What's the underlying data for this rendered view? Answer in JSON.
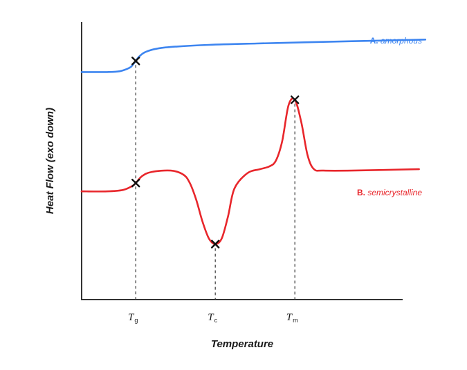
{
  "chart_data": {
    "type": "line",
    "xlabel": "Temperature",
    "ylabel": "Heat Flow (exo down)",
    "x_ticks": [
      {
        "name": "Tg",
        "main": "T",
        "sub": "g",
        "x": 0.17
      },
      {
        "name": "Tc",
        "main": "T",
        "sub": "c",
        "x": 0.42
      },
      {
        "name": "Tm",
        "main": "T",
        "sub": "m",
        "x": 0.67
      }
    ],
    "series": [
      {
        "name": "amorphous",
        "prefix": "A.",
        "color": "#3d85f0",
        "x": [
          0.0,
          0.08,
          0.12,
          0.15,
          0.16,
          0.17,
          0.18,
          0.2,
          0.24,
          0.3,
          0.4,
          0.55,
          0.7,
          0.85,
          1.08
        ],
        "y": [
          0.82,
          0.82,
          0.823,
          0.835,
          0.845,
          0.86,
          0.875,
          0.892,
          0.905,
          0.912,
          0.918,
          0.923,
          0.927,
          0.931,
          0.937
        ],
        "markers": [
          {
            "x": 0.17,
            "y": 0.86
          }
        ]
      },
      {
        "name": "semicrystalline",
        "prefix": "B.",
        "color": "#e8262b",
        "x": [
          0.0,
          0.08,
          0.13,
          0.16,
          0.17,
          0.19,
          0.22,
          0.28,
          0.32,
          0.34,
          0.36,
          0.38,
          0.4,
          0.42,
          0.44,
          0.46,
          0.48,
          0.52,
          0.56,
          0.59,
          0.61,
          0.63,
          0.65,
          0.67,
          0.69,
          0.71,
          0.73,
          0.76,
          0.85,
          1.06
        ],
        "y": [
          0.39,
          0.39,
          0.395,
          0.41,
          0.42,
          0.445,
          0.46,
          0.465,
          0.45,
          0.42,
          0.36,
          0.28,
          0.22,
          0.2,
          0.22,
          0.3,
          0.4,
          0.455,
          0.47,
          0.48,
          0.5,
          0.57,
          0.7,
          0.72,
          0.64,
          0.52,
          0.47,
          0.465,
          0.465,
          0.47
        ],
        "markers": [
          {
            "x": 0.17,
            "y": 0.42
          },
          {
            "x": 0.42,
            "y": 0.2
          },
          {
            "x": 0.67,
            "y": 0.72
          }
        ]
      }
    ],
    "xlim": [
      0,
      1
    ],
    "ylim": [
      0,
      1
    ],
    "grid": false,
    "legend": "inline labels at right"
  }
}
